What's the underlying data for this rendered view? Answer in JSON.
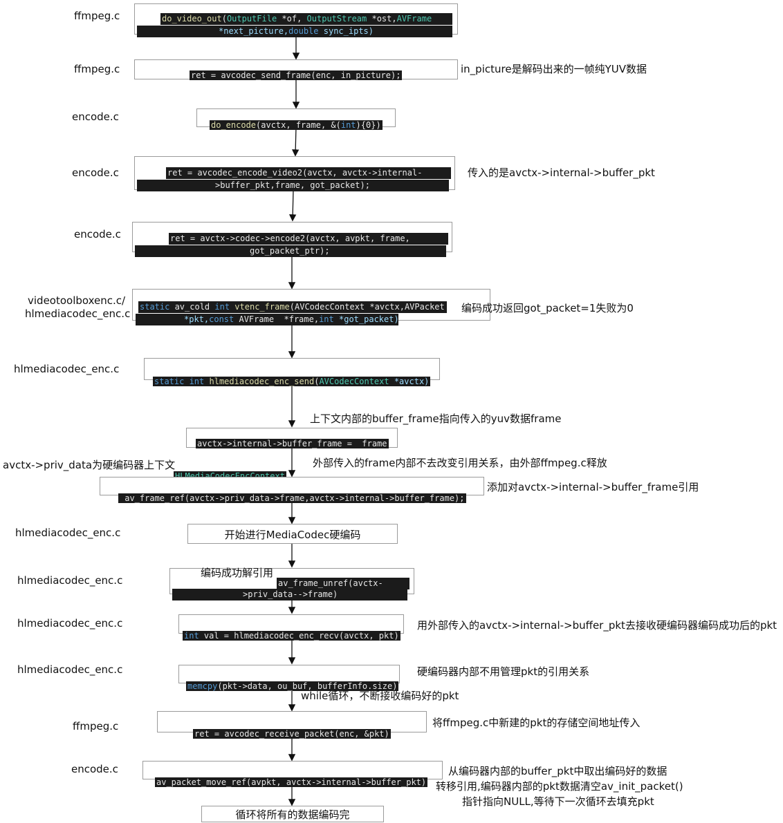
{
  "file_labels": {
    "f1": "ffmpeg.c",
    "f2": "ffmpeg.c",
    "f3": "encode.c",
    "f4": "encode.c",
    "f5": "encode.c",
    "f6a": "videotoolboxenc.c/",
    "f6b": "hlmediacodec_enc.c",
    "f7": "hlmediacodec_enc.c",
    "f10": "hlmediacodec_enc.c",
    "f11": "hlmediacodec_enc.c",
    "f12": "hlmediacodec_enc.c",
    "f13": "hlmediacodec_enc.c",
    "f14": "ffmpeg.c",
    "f15": "encode.c"
  },
  "steps": {
    "s1_l1_fn": "do_video_out",
    "s1_l1_a": "(",
    "s1_l1_t1": "OutputFile",
    "s1_l1_b": " *of, ",
    "s1_l1_t2": "OutputStream",
    "s1_l1_c": " *ost,",
    "s1_l1_t3": "AVFrame",
    "s1_l2_a": "*next_picture,",
    "s1_l2_k": "double",
    "s1_l2_b": " sync_ipts)",
    "s2": "ret = avcodec_send_frame(enc, in_picture);",
    "s3_fn": "do_encode",
    "s3_a": "(avctx, frame, &(",
    "s3_k": "int",
    "s3_b": "){0})",
    "s4_l1": "ret = avcodec_encode_video2(avctx, avctx->internal-",
    "s4_l2": ">buffer_pkt,frame, got_packet);",
    "s5_l1": "ret = avctx->codec->encode2(avctx, avpkt, frame,",
    "s5_l2": "got_packet_ptr);",
    "s6_l1_k1": "static",
    "s6_l1_a": " av_cold ",
    "s6_l1_k2": "int",
    "s6_l1_fn": " vtenc_frame",
    "s6_l1_b": "(AVCodecContext *avctx,AVPacket",
    "s6_l2_a": "*pkt,",
    "s6_l2_k1": "const",
    "s6_l2_b": " AVFrame  *frame,",
    "s6_l2_k2": "int",
    "s6_l2_c": " *got_packet)",
    "s7_k1": "static",
    "s7_k2": " int",
    "s7_fn": " hlmediacodec_enc_send",
    "s7_a": "(",
    "s7_t": "AVCodecContext",
    "s7_b": " *avctx)",
    "s8": "avctx->internal->buffer_frame =  frame",
    "s9_tag": "HLMediaCodecEncContext",
    "s9": " av_frame_ref(avctx->priv_data->frame,avctx->internal->buffer_frame);",
    "s10": "开始进行MediaCodec硬编码",
    "s11_text": "编码成功解引用",
    "s11_l1": "av_frame_unref(avctx-",
    "s11_l2": ">priv_data-->frame)",
    "s12_k": "int",
    "s12": " val = hlmediacodec_enc_recv(avctx, pkt)",
    "s13_fn": "memcpy",
    "s13": "(pkt->data, ou_buf, bufferInfo.size)",
    "s14": "ret = avcodec_receive_packet(enc, &pkt)",
    "s15": "av_packet_move_ref(avpkt, avctx->internal->buffer_pkt)",
    "s16": "循环将所有的数据编码完"
  },
  "notes": {
    "n2": "in_picture是解码出来的一帧纯YUV数据",
    "n4": "传入的是avctx->internal->buffer_pkt",
    "n6": "编码成功返回got_packet=1失败为0",
    "n8": "上下文内部的buffer_frame指向传入的yuv数据frame",
    "n9_left": "avctx->priv_data为硬编码器上下文",
    "n9_right": "外部传入的frame内部不去改变引用关系，由外部ffmpeg.c释放",
    "n9b": "添加对avctx->internal->buffer_frame引用",
    "n12": "用外部传入的avctx->internal->buffer_pkt去接收硬编码器编码成功后的pkt",
    "n13": "硬编码器内部不用管理pkt的引用关系",
    "n13b": "while循环，不断接收编码好的pkt",
    "n14": "将ffmpeg.c中新建的pkt的存储空间地址传入",
    "n15a": "从编码器内部的buffer_pkt中取出编码好的数据",
    "n15b": "转移引用,编码器内部的pkt数据清空av_init_packet()",
    "n15c": "指针指向NULL,等待下一次循环去填充pkt"
  }
}
